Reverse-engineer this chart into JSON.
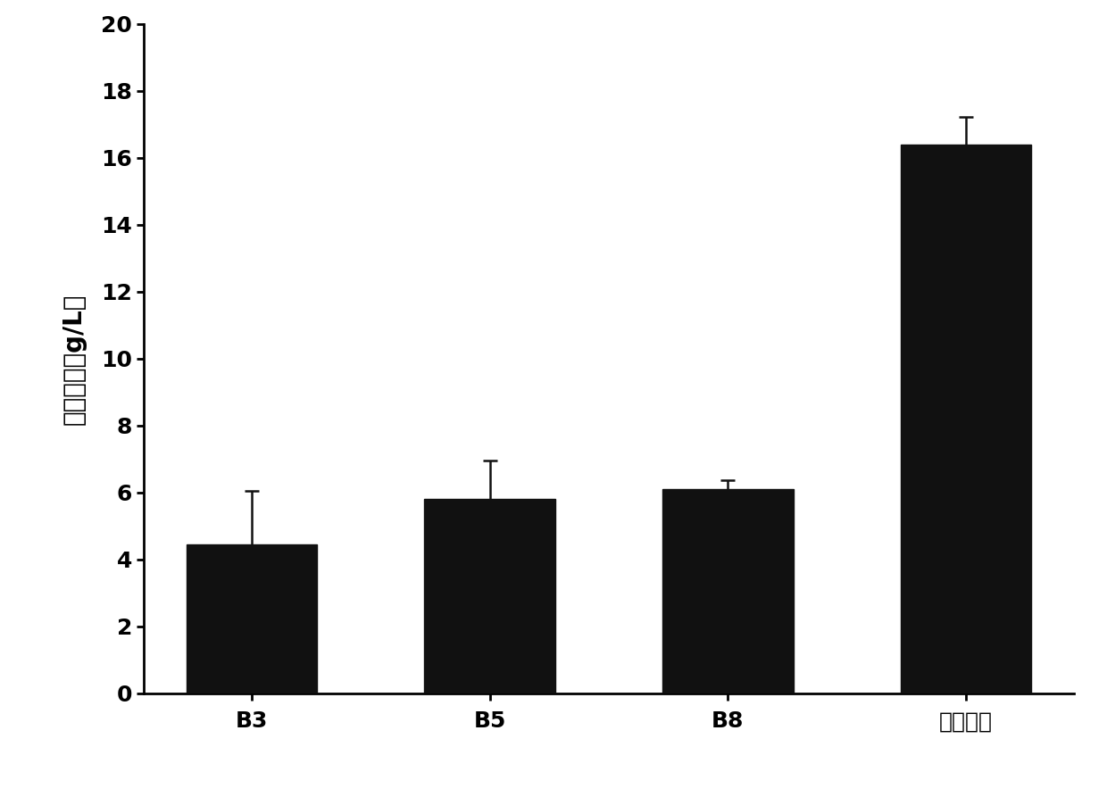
{
  "categories": [
    "B3",
    "B5",
    "B8",
    "联合培养"
  ],
  "values": [
    4.45,
    5.8,
    6.1,
    16.4
  ],
  "errors": [
    1.6,
    1.15,
    0.28,
    0.82
  ],
  "bar_color": "#111111",
  "bar_width": 0.55,
  "ylim": [
    0,
    20
  ],
  "yticks": [
    0,
    2,
    4,
    6,
    8,
    10,
    12,
    14,
    16,
    18,
    20
  ],
  "ylabel": "胞外多糖（g/L）",
  "background_color": "#ffffff",
  "axis_linewidth": 2.0,
  "tick_fontsize": 18,
  "ylabel_fontsize": 20,
  "xlabel_fontsize": 18,
  "error_capsize": 6,
  "error_linewidth": 1.8,
  "error_color": "#111111"
}
